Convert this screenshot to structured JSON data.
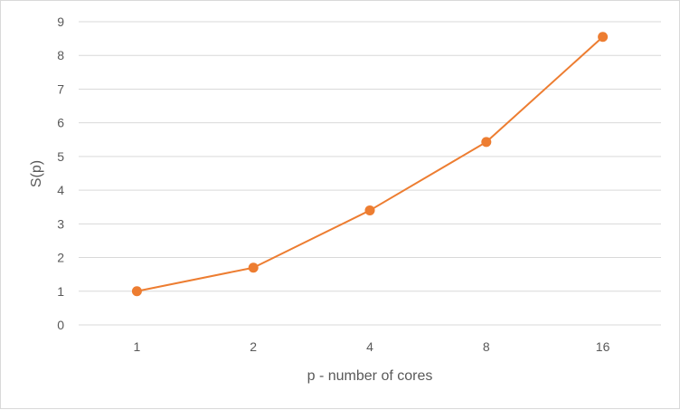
{
  "chart_data": {
    "type": "line",
    "title": "",
    "xlabel": "p - number of cores",
    "ylabel": "S(p)",
    "categories": [
      "1",
      "2",
      "4",
      "8",
      "16"
    ],
    "series": [
      {
        "values": [
          1.0,
          1.7,
          3.4,
          5.43,
          8.55
        ]
      }
    ],
    "ylim": [
      0,
      9
    ],
    "yticks": [
      "0",
      "1",
      "2",
      "3",
      "4",
      "5",
      "6",
      "7",
      "8",
      "9"
    ],
    "grid": true,
    "legend": "none",
    "color": "#ed7d31",
    "gridline_color": "#d9d9d9"
  }
}
